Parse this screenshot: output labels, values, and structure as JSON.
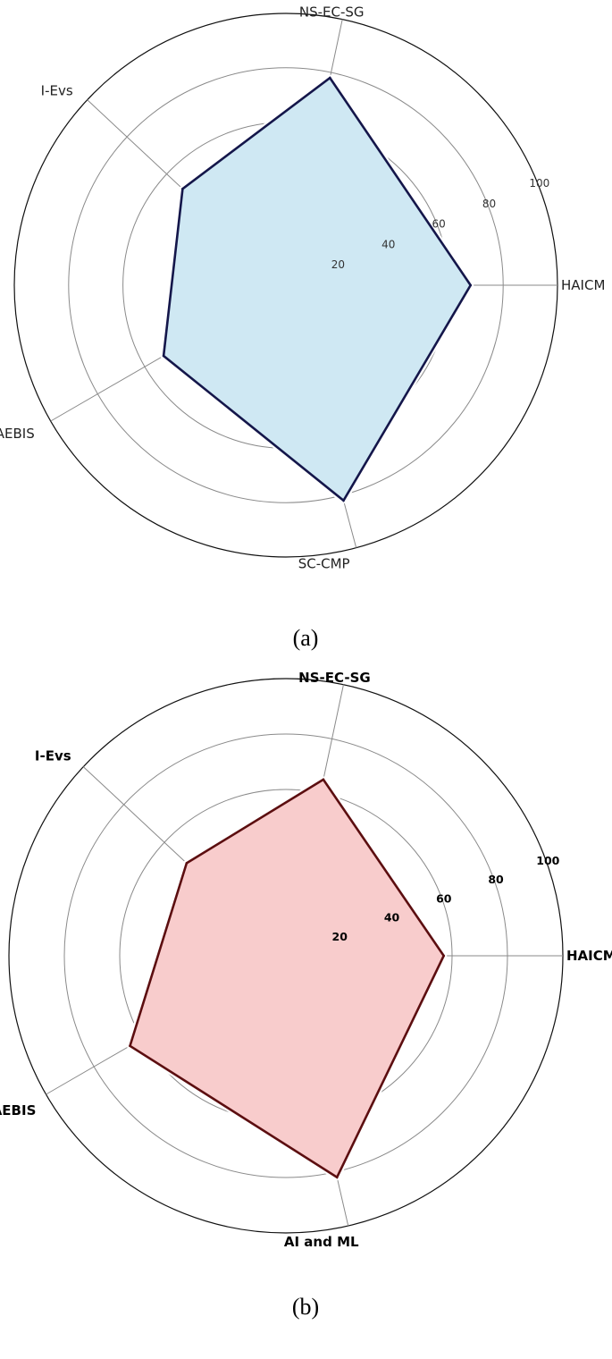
{
  "chart_data": [
    {
      "type": "radar",
      "panel_label": "(a)",
      "axes": [
        "HAICM",
        "NS-EC-SG",
        "I-Evs",
        "AEBIS",
        "SC-CMP"
      ],
      "rlim": [
        0,
        100
      ],
      "r_ticks": [
        20,
        40,
        60,
        80,
        100
      ],
      "series": [
        {
          "values": [
            68,
            78,
            52,
            52,
            82
          ]
        }
      ],
      "fill_color": "#cfe8f3",
      "line_color": "#14164a",
      "bold_labels": false
    },
    {
      "type": "radar",
      "panel_label": "(b)",
      "axes": [
        "HAICM",
        "NS-EC-SG",
        "I-Evs",
        "AEBIS",
        "AI and ML"
      ],
      "rlim": [
        0,
        100
      ],
      "r_ticks": [
        20,
        40,
        60,
        80,
        100
      ],
      "series": [
        {
          "values": [
            57,
            65,
            49,
            65,
            82
          ]
        }
      ],
      "fill_color": "#f8cccc",
      "line_color": "#5c0e10",
      "bold_labels": true
    }
  ]
}
